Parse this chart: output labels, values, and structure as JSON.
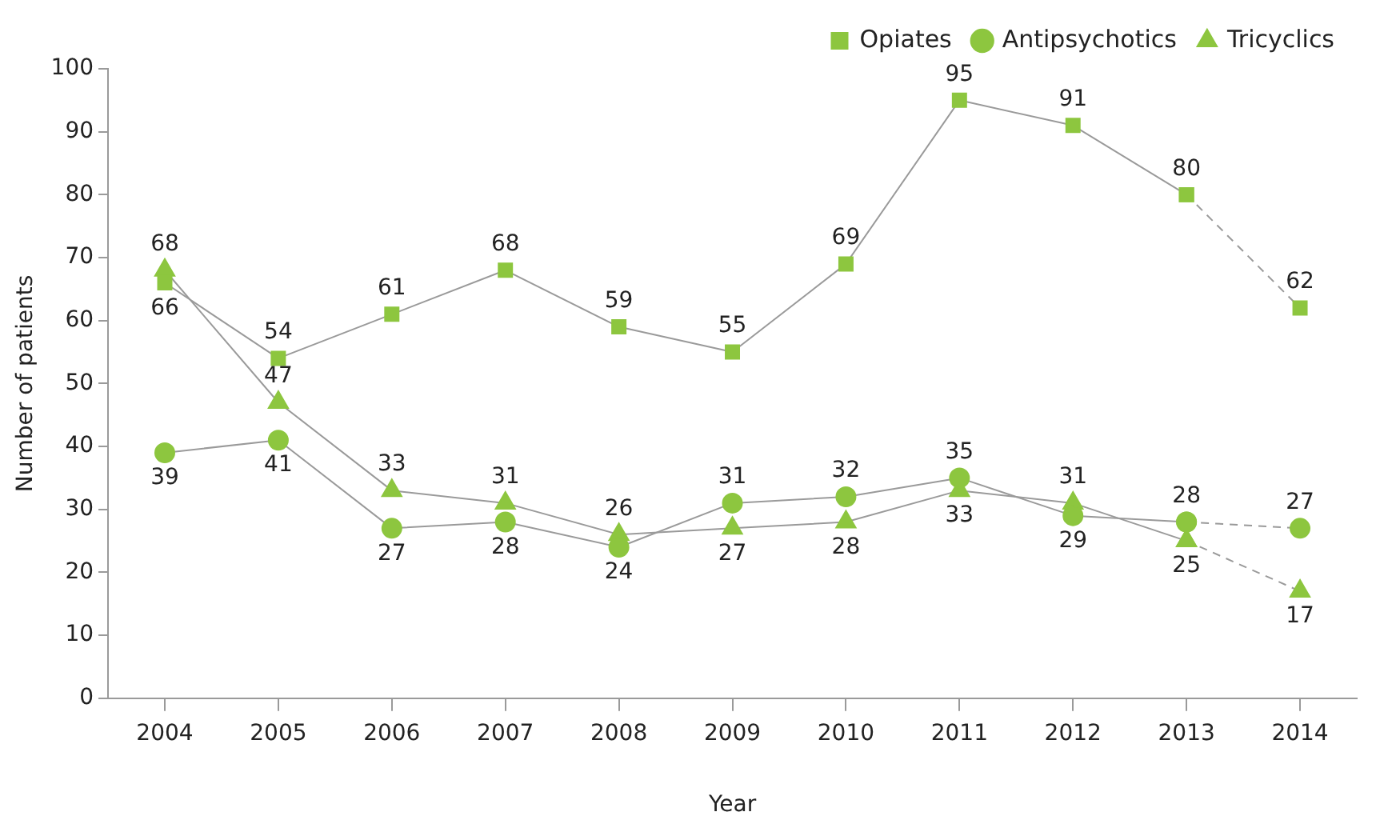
{
  "chart_data": {
    "type": "line",
    "xlabel": "Year",
    "ylabel": "Number of patients",
    "categories": [
      "2004",
      "2005",
      "2006",
      "2007",
      "2008",
      "2009",
      "2010",
      "2011",
      "2012",
      "2013",
      "2014"
    ],
    "series": [
      {
        "name": "Opiates",
        "color": "#8dc63f",
        "marker": "square",
        "values": [
          66,
          54,
          61,
          68,
          59,
          55,
          69,
          95,
          91,
          80,
          null
        ]
      },
      {
        "name": "Antipsychotics",
        "color": "#8dc63f",
        "marker": "circle",
        "values": [
          39,
          41,
          27,
          28,
          24,
          31,
          32,
          35,
          29,
          28,
          null
        ]
      },
      {
        "name": "Tricyclics",
        "color": "#8dc63f",
        "marker": "triangle",
        "values": [
          68,
          47,
          33,
          31,
          26,
          27,
          28,
          33,
          31,
          25,
          null
        ]
      },
      {
        "color": "#8dc63f",
        "marker": "square",
        "line_style": "dashed",
        "values": [
          null,
          null,
          null,
          null,
          null,
          null,
          null,
          null,
          null,
          80,
          62
        ],
        "value_labels": [
          null,
          null,
          null,
          null,
          null,
          null,
          null,
          null,
          null,
          null,
          "62"
        ]
      },
      {
        "color": "#8dc63f",
        "marker": "circle",
        "line_style": "dashed",
        "values": [
          null,
          null,
          null,
          null,
          null,
          null,
          null,
          null,
          null,
          28,
          27
        ],
        "value_labels": [
          null,
          null,
          null,
          null,
          null,
          null,
          null,
          null,
          null,
          null,
          "27"
        ]
      },
      {
        "color": "#8dc63f",
        "marker": "triangle",
        "line_style": "dashed",
        "values": [
          null,
          null,
          null,
          null,
          null,
          null,
          null,
          null,
          null,
          25,
          17
        ],
        "value_labels": [
          null,
          null,
          null,
          null,
          null,
          null,
          null,
          null,
          null,
          null,
          "17"
        ]
      }
    ],
    "ylim": [
      0,
      100
    ],
    "yticks": [
      0,
      10,
      20,
      30,
      40,
      50,
      60,
      70,
      80,
      90,
      100
    ],
    "grid": false,
    "legend": "top right",
    "data_labels": true,
    "line_style": "solid"
  }
}
